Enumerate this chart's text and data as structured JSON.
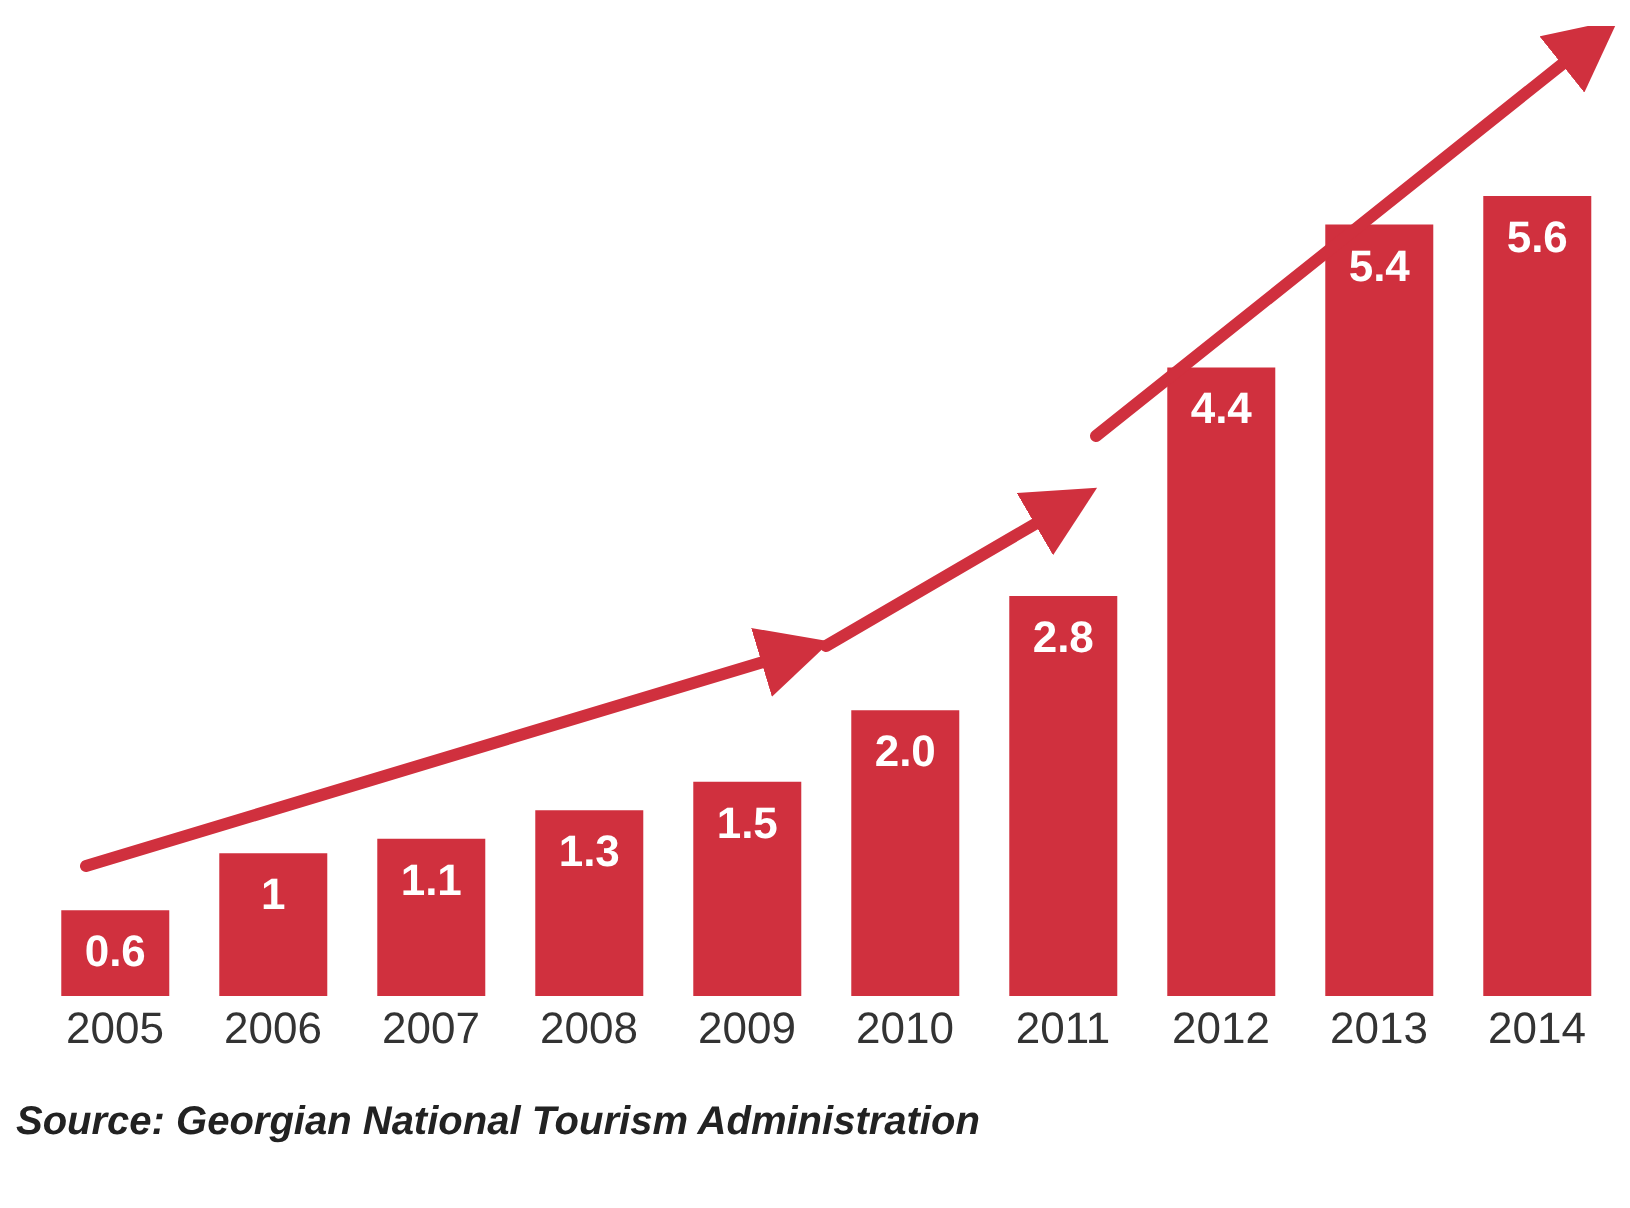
{
  "chart_data": {
    "type": "bar",
    "categories": [
      "2005",
      "2006",
      "2007",
      "2008",
      "2009",
      "2010",
      "2011",
      "2012",
      "2013",
      "2014"
    ],
    "values": [
      0.6,
      1,
      1.1,
      1.3,
      1.5,
      2.0,
      2.8,
      4.4,
      5.4,
      5.6
    ],
    "value_labels": [
      "0.6",
      "1",
      "1.1",
      "1.3",
      "1.5",
      "2.0",
      "2.8",
      "4.4",
      "5.4",
      "5.6"
    ],
    "color": "#d0303e",
    "annotations": [
      "Source: Georgian National Tourism Administration"
    ]
  }
}
